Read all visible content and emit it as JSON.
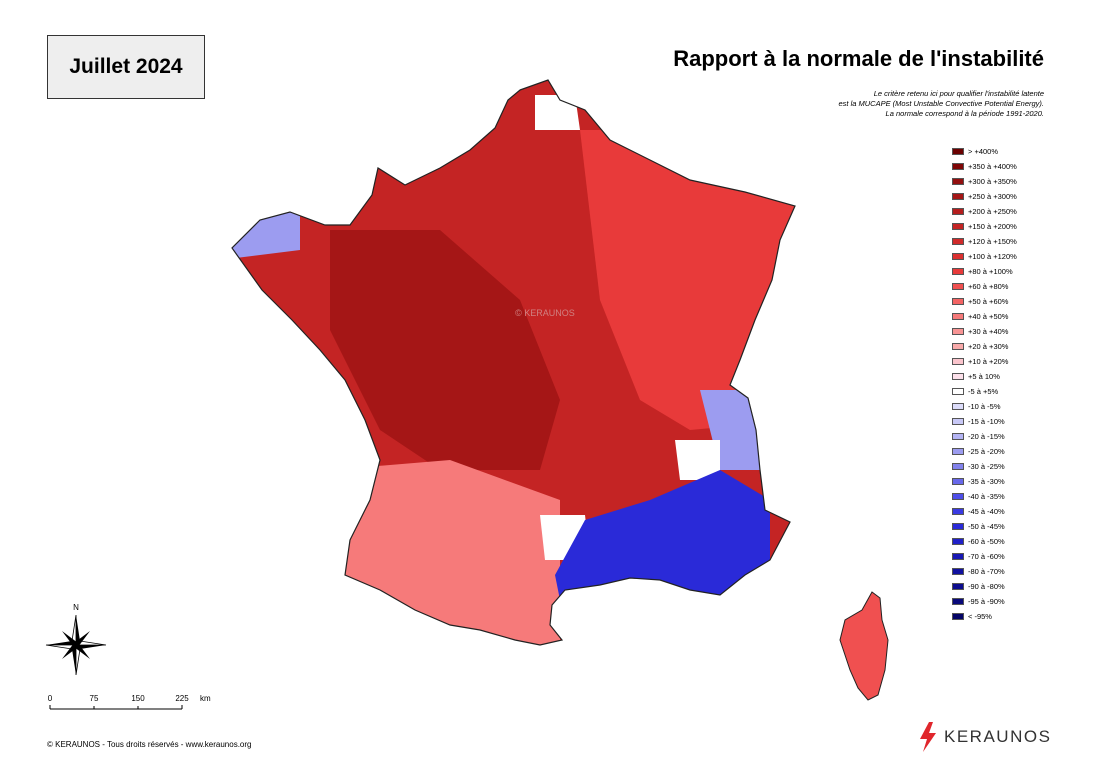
{
  "header": {
    "month": "Juillet 2024",
    "title": "Rapport à la normale de l'instabilité",
    "description": [
      "Le critère retenu ici pour qualifier l'instabilité latente",
      "est la MUCAPE (Most Unstable Convective Potential Energy).",
      "La normale correspond à la période 1991-2020."
    ]
  },
  "legend": [
    {
      "label": "> +400%",
      "color": "#6b0000"
    },
    {
      "label": "+350 à +400%",
      "color": "#7f0606"
    },
    {
      "label": "+300 à +350%",
      "color": "#930f0f"
    },
    {
      "label": "+250 à +300%",
      "color": "#a51616"
    },
    {
      "label": "+200 à +250%",
      "color": "#b51d1d"
    },
    {
      "label": "+150 à +200%",
      "color": "#c42424"
    },
    {
      "label": "+120 à +150%",
      "color": "#d02a2a"
    },
    {
      "label": "+100 à +120%",
      "color": "#db3030"
    },
    {
      "label": "+80 à +100%",
      "color": "#e83a3a"
    },
    {
      "label": "+60 à +80%",
      "color": "#f05050"
    },
    {
      "label": "+50 à +60%",
      "color": "#f46464"
    },
    {
      "label": "+40 à +50%",
      "color": "#f67a7a"
    },
    {
      "label": "+30 à +40%",
      "color": "#f89494"
    },
    {
      "label": "+20 à +30%",
      "color": "#f9aaaa"
    },
    {
      "label": "+10 à +20%",
      "color": "#fac4cc"
    },
    {
      "label": "+5 à 10%",
      "color": "#fce0ea"
    },
    {
      "label": "-5 à +5%",
      "color": "#ffffff"
    },
    {
      "label": "-10 à -5%",
      "color": "#dcdcfa"
    },
    {
      "label": "-15 à -10%",
      "color": "#c8c8f6"
    },
    {
      "label": "-20 à -15%",
      "color": "#b4b4f4"
    },
    {
      "label": "-25 à -20%",
      "color": "#9c9cf0"
    },
    {
      "label": "-30 à -25%",
      "color": "#8282ec"
    },
    {
      "label": "-35 à -30%",
      "color": "#6868ea"
    },
    {
      "label": "-40 à -35%",
      "color": "#4e4ee8"
    },
    {
      "label": "-45 à -40%",
      "color": "#3a3ae2"
    },
    {
      "label": "-50 à -45%",
      "color": "#2a2ad8"
    },
    {
      "label": "-60 à -50%",
      "color": "#2020c8"
    },
    {
      "label": "-70 à -60%",
      "color": "#1818b4"
    },
    {
      "label": "-80 à -70%",
      "color": "#1010a0"
    },
    {
      "label": "-90 à -80%",
      "color": "#0c0c8e"
    },
    {
      "label": "-95 à -90%",
      "color": "#08087a"
    },
    {
      "label": "< -95%",
      "color": "#040466"
    }
  ],
  "map": {
    "watermark": "© KERAUNOS",
    "colors": {
      "west_core": "#a51616",
      "north_center": "#c42424",
      "east": "#e83a3a",
      "southwest": "#f67a7a",
      "southeast_negative": "#2a2ad8",
      "alps_light": "#9c9cf0",
      "neutral": "#ffffff",
      "corsica": "#f05050"
    }
  },
  "compass": {
    "north_label": "N",
    "icon": "compass-rose-icon"
  },
  "scale": {
    "ticks": [
      "0",
      "75",
      "150",
      "225"
    ],
    "unit": "km"
  },
  "footer": {
    "copyright": "© KERAUNOS - Tous droits réservés - www.keraunos.org",
    "brand": "KERAUNOS",
    "brand_icon": "lightning-bolt-icon",
    "brand_color": "#e0262c"
  }
}
